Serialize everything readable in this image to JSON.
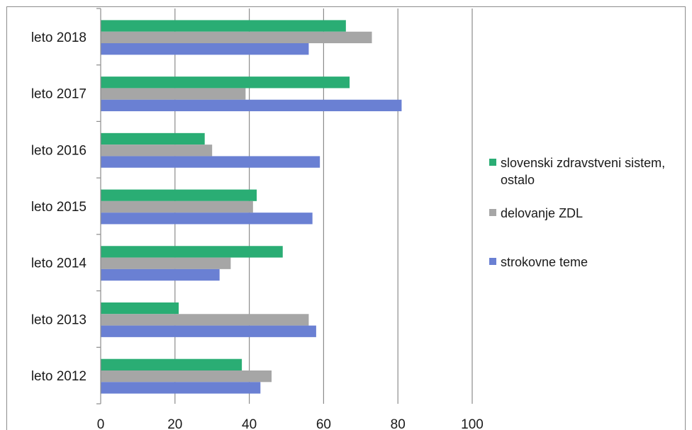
{
  "chart_data": {
    "type": "bar",
    "orientation": "horizontal",
    "categories": [
      "leto 2012",
      "leto 2013",
      "leto 2014",
      "leto 2015",
      "leto 2016",
      "leto 2017",
      "leto 2018"
    ],
    "series": [
      {
        "name": "strokovne teme",
        "color": "#6a80d3",
        "values": [
          43,
          58,
          32,
          57,
          59,
          81,
          56
        ]
      },
      {
        "name": "delovanje ZDL",
        "color": "#a6a6a6",
        "values": [
          46,
          56,
          35,
          41,
          30,
          39,
          73
        ]
      },
      {
        "name": "slovenski zdravstveni sistem, ostalo",
        "color": "#2aad74",
        "values": [
          38,
          21,
          49,
          42,
          28,
          67,
          66
        ]
      }
    ],
    "xlim": [
      0,
      100
    ],
    "xticks": [
      "0",
      "20",
      "40",
      "60",
      "80",
      "100"
    ],
    "grid": true,
    "legend": "right"
  }
}
